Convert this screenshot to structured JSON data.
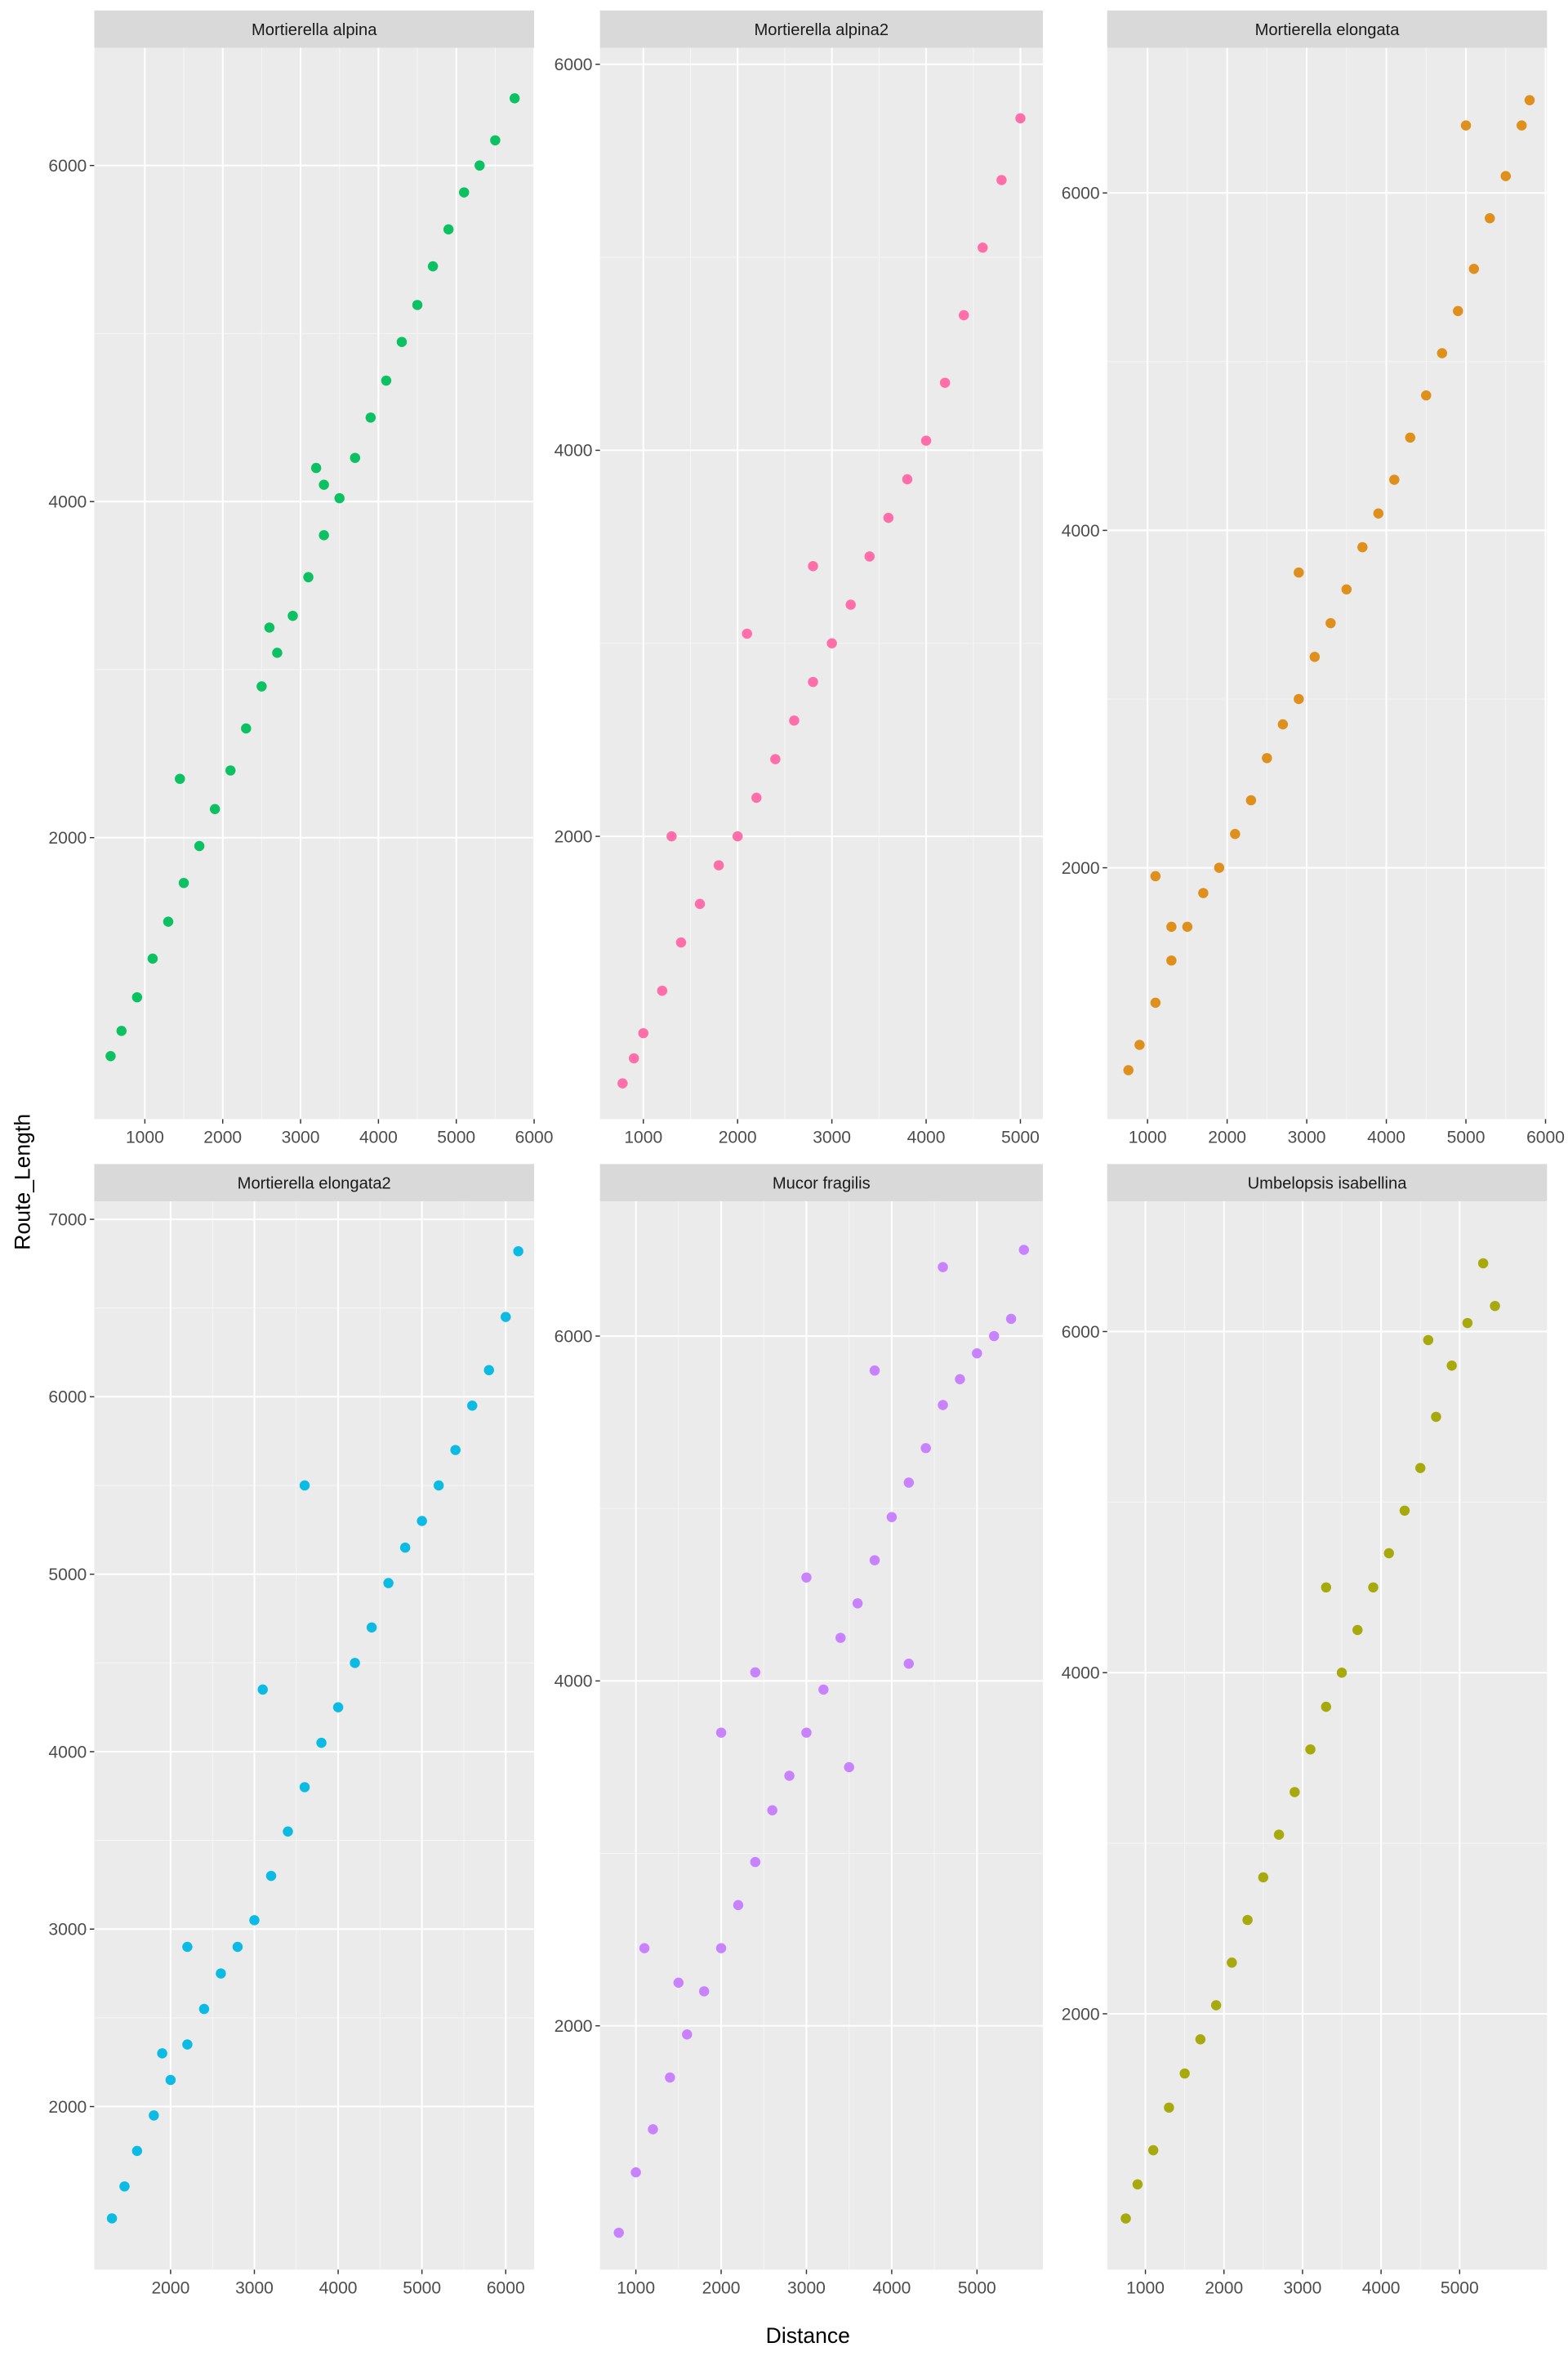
{
  "xlabel": "Distance",
  "ylabel": "Route_Length",
  "chart_data": [
    {
      "type": "scatter",
      "title": "Mortierella alpina",
      "color": "#00BF5A",
      "x": [
        560,
        700,
        900,
        1100,
        1300,
        1500,
        1700,
        1900,
        2100,
        2300,
        2500,
        2700,
        2900,
        3100,
        3300,
        3500,
        3700,
        3900,
        4100,
        4300,
        4500,
        4700,
        4900,
        5100,
        5300,
        5500,
        5750,
        1450,
        2600,
        3200,
        3300
      ],
      "values": [
        700,
        850,
        1050,
        1280,
        1500,
        1730,
        1950,
        2170,
        2400,
        2650,
        2900,
        3100,
        3320,
        3550,
        3800,
        4020,
        4260,
        4500,
        4720,
        4950,
        5170,
        5400,
        5620,
        5840,
        6000,
        6150,
        6400,
        2350,
        3250,
        4200,
        4100
      ],
      "xlim": [
        350,
        6000
      ],
      "ylim": [
        325,
        6700
      ],
      "xticks": [
        1000,
        2000,
        3000,
        4000,
        5000,
        6000
      ],
      "yticks": [
        2000,
        4000,
        6000
      ],
      "grid": true
    },
    {
      "type": "scatter",
      "title": "Mortierella alpina2",
      "color": "#FF67A4",
      "x": [
        780,
        900,
        1000,
        1200,
        1400,
        1600,
        1800,
        2000,
        2200,
        2400,
        2600,
        2800,
        3000,
        3200,
        3400,
        3600,
        3800,
        4000,
        4200,
        4400,
        4600,
        4800,
        5000,
        1300,
        2100,
        2800
      ],
      "values": [
        720,
        850,
        980,
        1200,
        1450,
        1650,
        1850,
        2000,
        2200,
        2400,
        2600,
        2800,
        3000,
        3200,
        3450,
        3650,
        3850,
        4050,
        4350,
        4700,
        5050,
        5400,
        5720,
        2000,
        3050,
        3400
      ],
      "xlim": [
        540,
        5238
      ],
      "ylim": [
        535,
        6085
      ],
      "xticks": [
        1000,
        2000,
        3000,
        4000,
        5000
      ],
      "yticks": [
        2000,
        4000,
        6000
      ],
      "grid": true
    },
    {
      "type": "scatter",
      "title": "Mortierella elongata",
      "color": "#DE8A10",
      "x": [
        760,
        900,
        1100,
        1300,
        1500,
        1700,
        1900,
        2100,
        2300,
        2500,
        2700,
        2900,
        3100,
        3300,
        3500,
        3700,
        3900,
        4100,
        4300,
        4500,
        4700,
        4900,
        5100,
        5300,
        5500,
        5700,
        5800,
        1100,
        1300,
        2900,
        5000
      ],
      "values": [
        800,
        950,
        1200,
        1450,
        1650,
        1850,
        2000,
        2200,
        2400,
        2650,
        2850,
        3000,
        3250,
        3450,
        3650,
        3900,
        4100,
        4300,
        4550,
        4800,
        5050,
        5300,
        5550,
        5850,
        6100,
        6400,
        6550,
        1950,
        1650,
        3750,
        6400
      ],
      "xlim": [
        493,
        6019
      ],
      "ylim": [
        510,
        6860
      ],
      "xticks": [
        1000,
        2000,
        3000,
        4000,
        5000,
        6000
      ],
      "yticks": [
        2000,
        4000,
        6000
      ],
      "grid": true
    },
    {
      "type": "scatter",
      "title": "Mortierella elongata2",
      "color": "#00B8E3",
      "x": [
        1300,
        1450,
        1600,
        1800,
        2000,
        2200,
        2400,
        2600,
        2800,
        3000,
        3200,
        3400,
        3600,
        3800,
        4000,
        4200,
        4400,
        4600,
        4800,
        5000,
        5200,
        5400,
        5600,
        5800,
        6000,
        6150,
        1900,
        3600,
        3100,
        2200
      ],
      "values": [
        1370,
        1550,
        1750,
        1950,
        2150,
        2350,
        2550,
        2750,
        2900,
        3050,
        3300,
        3550,
        3800,
        4050,
        4250,
        4500,
        4700,
        4950,
        5150,
        5300,
        5500,
        5700,
        5950,
        6150,
        6450,
        6820,
        2300,
        5500,
        4350,
        2900
      ],
      "xlim": [
        1089,
        6339
      ],
      "ylim": [
        1081,
        7101
      ],
      "xticks": [
        2000,
        3000,
        4000,
        5000,
        6000
      ],
      "yticks": [
        2000,
        3000,
        4000,
        5000,
        6000,
        7000
      ],
      "grid": true
    },
    {
      "type": "scatter",
      "title": "Mucor fragilis",
      "color": "#C77CFF",
      "x": [
        800,
        1000,
        1200,
        1400,
        1600,
        1800,
        2000,
        2200,
        2400,
        2600,
        2800,
        3000,
        3200,
        3400,
        3600,
        3800,
        4000,
        4200,
        4400,
        4600,
        4800,
        5000,
        5200,
        5400,
        5550,
        1100,
        1500,
        2000,
        2400,
        3000,
        3800,
        4600,
        4200,
        3500
      ],
      "values": [
        800,
        1150,
        1400,
        1700,
        1950,
        2200,
        2450,
        2700,
        2950,
        3250,
        3450,
        3700,
        3950,
        4250,
        4450,
        4700,
        4950,
        5150,
        5350,
        5600,
        5750,
        5900,
        6000,
        6100,
        6500,
        2450,
        2250,
        3700,
        4050,
        4600,
        5800,
        6400,
        4100,
        3500
      ],
      "xlim": [
        579,
        5772
      ],
      "ylim": [
        586,
        6781
      ],
      "xticks": [
        1000,
        2000,
        3000,
        4000,
        5000
      ],
      "yticks": [
        2000,
        4000,
        6000
      ],
      "grid": true
    },
    {
      "type": "scatter",
      "title": "Umbelopsis isabellina",
      "color": "#A3A500",
      "x": [
        750,
        900,
        1100,
        1300,
        1500,
        1700,
        1900,
        2100,
        2300,
        2500,
        2700,
        2900,
        3100,
        3300,
        3500,
        3700,
        3900,
        4100,
        4300,
        4500,
        4700,
        4900,
        5100,
        5300,
        5450,
        3300,
        4600
      ],
      "values": [
        800,
        1000,
        1200,
        1450,
        1650,
        1850,
        2050,
        2300,
        2550,
        2800,
        3050,
        3300,
        3550,
        3800,
        4000,
        4250,
        4500,
        4700,
        4950,
        5200,
        5500,
        5800,
        6050,
        6400,
        6150,
        4500,
        5950
      ],
      "xlim": [
        513,
        6113
      ],
      "ylim": [
        500,
        6763
      ],
      "xticks": [
        1000,
        2000,
        3000,
        4000,
        5000
      ],
      "yticks": [
        2000,
        4000,
        6000
      ],
      "grid": true
    }
  ]
}
